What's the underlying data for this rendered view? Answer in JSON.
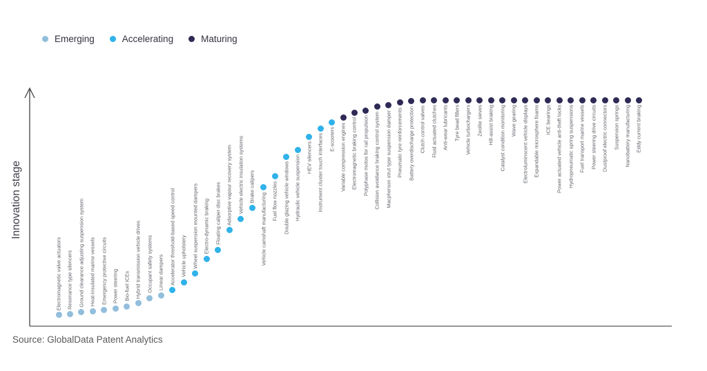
{
  "source": {
    "label": "Source: GlobalData Patent Analytics"
  },
  "chart_data": {
    "type": "scatter",
    "title": "",
    "ylabel": "Innovation stage",
    "xlabel": "",
    "y_axis": {
      "label": "Innovation stage",
      "range": [
        0,
        100
      ],
      "ticks": "none",
      "arrow": true
    },
    "x_axis": {
      "label": "",
      "ticks": "none"
    },
    "legend_position": "top-left",
    "grid": "off",
    "legend": [
      {
        "label": "Emerging",
        "color": "#92BEDC"
      },
      {
        "label": "Accelerating",
        "color": "#30B2EA"
      },
      {
        "label": "Maturing",
        "color": "#2E2A55"
      }
    ],
    "stage_colors": {
      "Emerging": "#92BEDC",
      "Accelerating": "#30B2EA",
      "Maturing": "#2E2A55"
    },
    "items": [
      {
        "label": "Electromagnetic valve actuators",
        "stage": "Emerging",
        "value": 4.9
      },
      {
        "label": "Resonance type silencers",
        "stage": "Emerging",
        "value": 5.2
      },
      {
        "label": "Ground clearance adjusting suspension system",
        "stage": "Emerging",
        "value": 6.1
      },
      {
        "label": "Heat-insulated marine vessels",
        "stage": "Emerging",
        "value": 6.7
      },
      {
        "label": "Emergency protective circuits",
        "stage": "Emerging",
        "value": 7.3
      },
      {
        "label": "Power steering",
        "stage": "Emerging",
        "value": 7.9
      },
      {
        "label": "Bio-fuel ICEs",
        "stage": "Emerging",
        "value": 8.8
      },
      {
        "label": "Hybrid transmission vehicle drives",
        "stage": "Emerging",
        "value": 10.1
      },
      {
        "label": "Occupant safety systems",
        "stage": "Emerging",
        "value": 12.5
      },
      {
        "label": "Linear dampers",
        "stage": "Emerging",
        "value": 13.7
      },
      {
        "label": "Accelerator threshold-based speed control",
        "stage": "Accelerating",
        "value": 15.9
      },
      {
        "label": "Vehicle upholstery",
        "stage": "Accelerating",
        "value": 19.5
      },
      {
        "label": "Wheel suspension mounted dampers",
        "stage": "Accelerating",
        "value": 23.2
      },
      {
        "label": "Electro-dynamic braking",
        "stage": "Accelerating",
        "value": 29.6
      },
      {
        "label": "Floating caliper disc brakes",
        "stage": "Accelerating",
        "value": 33.8
      },
      {
        "label": "Adsorptive vapour recovery system",
        "stage": "Accelerating",
        "value": 42.4
      },
      {
        "label": "Vehicle electric insulation systems",
        "stage": "Accelerating",
        "value": 47.3
      },
      {
        "label": "Brake calipers",
        "stage": "Accelerating",
        "value": 52.4
      },
      {
        "label": "Vehicle camshaft manufacturing",
        "stage": "Accelerating",
        "value": 61.3
      },
      {
        "label": "Fuel flow nozzles",
        "stage": "Accelerating",
        "value": 66.2
      },
      {
        "label": "Double glazing vehicle windows",
        "stage": "Accelerating",
        "value": 75.0
      },
      {
        "label": "Hydraulic vehicle suspension",
        "stage": "Accelerating",
        "value": 78.0
      },
      {
        "label": "HEV silencers",
        "stage": "Accelerating",
        "value": 83.8
      },
      {
        "label": "Instrument cluster touch interfaces",
        "stage": "Accelerating",
        "value": 87.5
      },
      {
        "label": "E-scooters",
        "stage": "Accelerating",
        "value": 90.2
      },
      {
        "label": "Variable compression engines",
        "stage": "Maturing",
        "value": 92.1
      },
      {
        "label": "Electromagnetic braking control",
        "stage": "Maturing",
        "value": 94.5
      },
      {
        "label": "Polyphase motos for rail propulsion",
        "stage": "Maturing",
        "value": 95.4
      },
      {
        "label": "Collision avoidance braking control system",
        "stage": "Maturing",
        "value": 97.0
      },
      {
        "label": "Macpherson strut type suspension damper",
        "stage": "Maturing",
        "value": 97.6
      },
      {
        "label": "Pneumatic tyre reinforcements",
        "stage": "Maturing",
        "value": 98.8
      },
      {
        "label": "Battery overdischarge protection",
        "stage": "Maturing",
        "value": 99.4
      },
      {
        "label": "Clutch control valves",
        "stage": "Maturing",
        "value": 99.7
      },
      {
        "label": "Fluid actuated clutches",
        "stage": "Maturing",
        "value": 100
      },
      {
        "label": "Anti-wear lubricants",
        "stage": "Maturing",
        "value": 100
      },
      {
        "label": "Tyre bead fillers",
        "stage": "Maturing",
        "value": 100
      },
      {
        "label": "Vehicle turbochargers",
        "stage": "Maturing",
        "value": 100
      },
      {
        "label": "Zeolite sieves",
        "stage": "Maturing",
        "value": 100
      },
      {
        "label": "Hill-assist braking",
        "stage": "Maturing",
        "value": 100
      },
      {
        "label": "Catalyst condition monitoring",
        "stage": "Maturing",
        "value": 100
      },
      {
        "label": "Wave gearing",
        "stage": "Maturing",
        "value": 100
      },
      {
        "label": "Electroluminscent vehicle displays",
        "stage": "Maturing",
        "value": 100
      },
      {
        "label": "Expandable microsphere foams",
        "stage": "Maturing",
        "value": 100
      },
      {
        "label": "ICE bearings",
        "stage": "Maturing",
        "value": 100
      },
      {
        "label": "Power actuated vehicle anti-theft locks",
        "stage": "Maturing",
        "value": 100
      },
      {
        "label": "Hydropneumatic spring suspensions",
        "stage": "Maturing",
        "value": 100
      },
      {
        "label": "Fuel transport marine vessels",
        "stage": "Maturing",
        "value": 100
      },
      {
        "label": "Power steering drive circuits",
        "stage": "Maturing",
        "value": 100
      },
      {
        "label": "Dustproof electric connectors",
        "stage": "Maturing",
        "value": 100
      },
      {
        "label": "Suspension springs",
        "stage": "Maturing",
        "value": 100
      },
      {
        "label": "Nanobattery manufacturing",
        "stage": "Maturing",
        "value": 100
      },
      {
        "label": "Eddy current braking",
        "stage": "Maturing",
        "value": 100
      }
    ]
  }
}
